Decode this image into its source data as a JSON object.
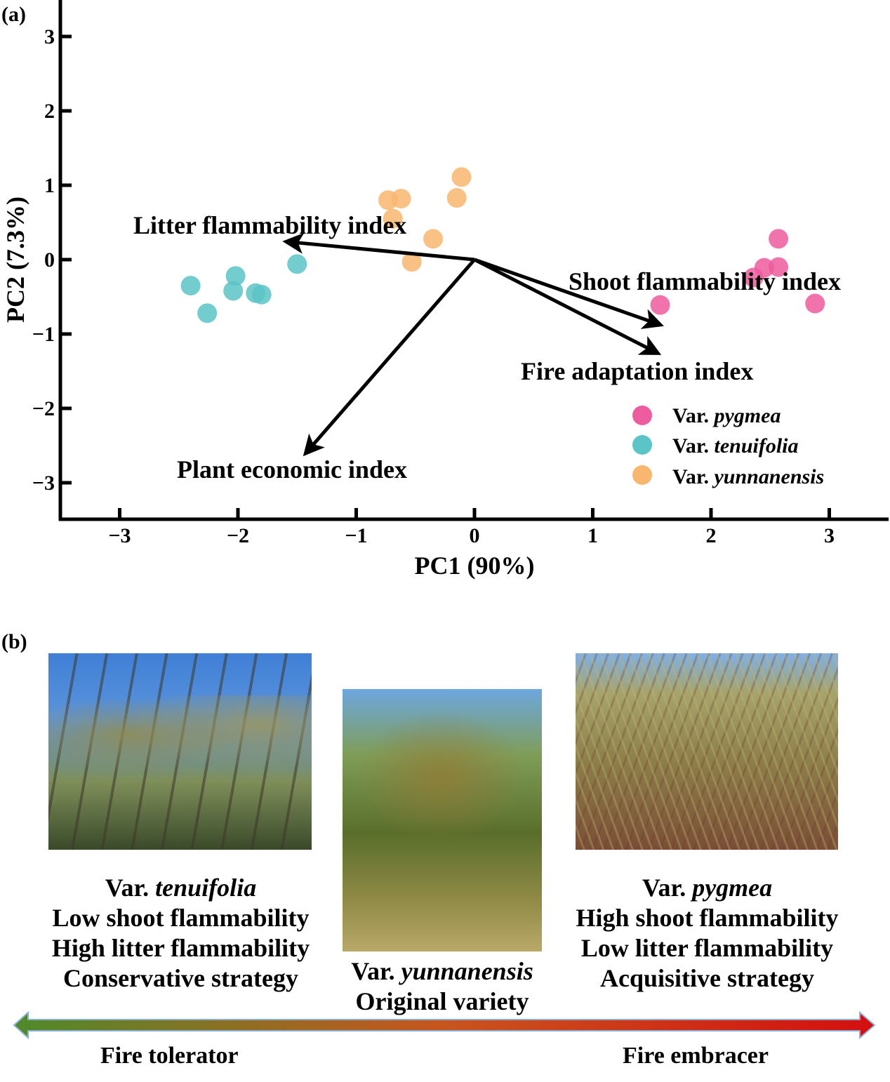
{
  "panel_a_label": "(a)",
  "panel_b_label": "(b)",
  "chart_data": {
    "type": "scatter",
    "subtype": "pca-biplot",
    "xlabel": "PC1 (90%)",
    "ylabel": "PC2 (7.3%)",
    "xlim": [
      -3.5,
      3.5
    ],
    "ylim": [
      -3.5,
      3.5
    ],
    "xticks": [
      -3,
      -2,
      -1,
      0,
      1,
      2,
      3
    ],
    "yticks": [
      -3,
      -2,
      -1,
      0,
      1,
      2,
      3
    ],
    "xtick_labels": [
      "−3",
      "−2",
      "−1",
      "0",
      "1",
      "2",
      "3"
    ],
    "ytick_labels": [
      "−3",
      "−2",
      "−1",
      "0",
      "1",
      "2",
      "3"
    ],
    "grid": false,
    "legend_position": "bottom-right",
    "series": [
      {
        "name": "Var.",
        "name_italic": "pygmea",
        "color": "#ee5b9e",
        "points": [
          [
            2.57,
            0.28
          ],
          [
            2.45,
            -0.11
          ],
          [
            2.57,
            -0.1
          ],
          [
            2.36,
            -0.24
          ],
          [
            1.57,
            -0.61
          ],
          [
            2.88,
            -0.59
          ]
        ]
      },
      {
        "name": "Var.",
        "name_italic": "tenuifolia",
        "color": "#5bc4c7",
        "points": [
          [
            -2.4,
            -0.35
          ],
          [
            -2.26,
            -0.72
          ],
          [
            -2.02,
            -0.22
          ],
          [
            -2.04,
            -0.42
          ],
          [
            -1.85,
            -0.45
          ],
          [
            -1.8,
            -0.47
          ],
          [
            -1.5,
            -0.06
          ]
        ]
      },
      {
        "name": "Var.",
        "name_italic": "yunnanensis",
        "color": "#f9b66f",
        "points": [
          [
            -0.11,
            1.11
          ],
          [
            -0.15,
            0.83
          ],
          [
            -0.62,
            0.82
          ],
          [
            -0.73,
            0.8
          ],
          [
            -0.69,
            0.55
          ],
          [
            -0.35,
            0.28
          ],
          [
            -0.53,
            -0.03
          ]
        ]
      }
    ],
    "loadings": [
      {
        "label": "Litter flammability index",
        "x": -1.58,
        "y": 0.24
      },
      {
        "label": "Shoot flammability index",
        "x": 1.56,
        "y": -0.87
      },
      {
        "label": "Fire adaptation index",
        "x": 1.54,
        "y": -1.25
      },
      {
        "label": "Plant economic index",
        "x": -1.42,
        "y": -2.59
      }
    ]
  },
  "panel_b": {
    "left": {
      "var": "Var.",
      "var_italic": "tenuifolia",
      "lines": [
        "Low shoot flammability",
        "High litter flammability",
        "Conservative strategy"
      ]
    },
    "middle": {
      "var": "Var.",
      "var_italic": "yunnanensis",
      "lines": [
        "Original variety"
      ]
    },
    "right": {
      "var": "Var.",
      "var_italic": "pygmea",
      "lines": [
        "High shoot flammability",
        "Low litter flammability",
        "Acquisitive strategy"
      ]
    },
    "gradient_colors": [
      "#4f8a2a",
      "#c8551e",
      "#d40f0f"
    ],
    "left_end_label": "Fire tolerator",
    "right_end_label": "Fire embracer"
  }
}
